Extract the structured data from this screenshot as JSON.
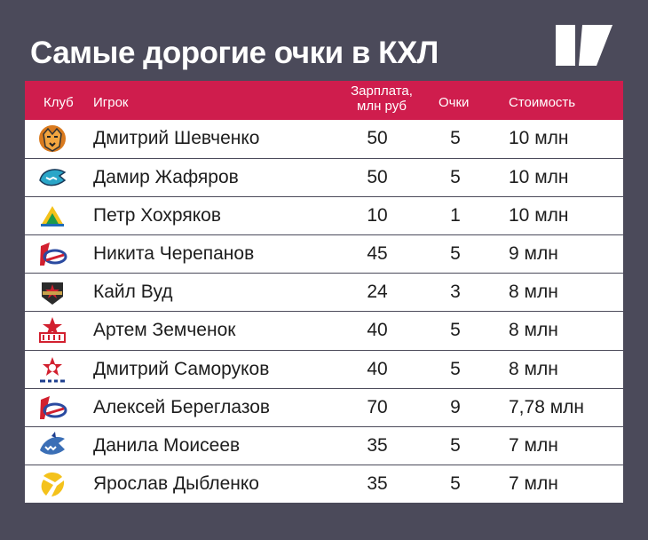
{
  "title": "Самые дорогие очки в КХЛ",
  "colors": {
    "background": "#4b4a5a",
    "header": "#cf1d4d",
    "text": "#1d1d1d"
  },
  "table": {
    "headers": {
      "club": "Клуб",
      "player": "Игрок",
      "salary_line1": "Зарплата,",
      "salary_line2": "млн руб",
      "points": "Очки",
      "cost": "Стоимость"
    },
    "rows": [
      {
        "emblem": "tiger-emblem",
        "player": "Дмитрий Шевченко",
        "salary": "50",
        "points": "5",
        "cost": "10 млн"
      },
      {
        "emblem": "leopard-emblem",
        "player": "Дамир Жафяров",
        "salary": "50",
        "points": "5",
        "cost": "10 млн"
      },
      {
        "emblem": "salavat-emblem",
        "player": "Петр Хохряков",
        "salary": "10",
        "points": "1",
        "cost": "10 млн"
      },
      {
        "emblem": "lokomotiv-emblem",
        "player": "Никита Черепанов",
        "salary": "45",
        "points": "5",
        "cost": "9 млн"
      },
      {
        "emblem": "redstar-emblem",
        "player": "Кайл Вуд",
        "salary": "24",
        "points": "3",
        "cost": "8 млн"
      },
      {
        "emblem": "ska-emblem",
        "player": "Артем Земченок",
        "salary": "40",
        "points": "5",
        "cost": "8 млн"
      },
      {
        "emblem": "cska-emblem",
        "player": "Дмитрий Саморуков",
        "salary": "40",
        "points": "5",
        "cost": "8 млн"
      },
      {
        "emblem": "lokomotiv-emblem",
        "player": "Алексей Береглазов",
        "salary": "70",
        "points": "9",
        "cost": "7,78 млн"
      },
      {
        "emblem": "shark-emblem",
        "player": "Данила Моисеев",
        "salary": "35",
        "points": "5",
        "cost": "7 млн"
      },
      {
        "emblem": "yellow-emblem",
        "player": "Ярослав Дыбленко",
        "salary": "35",
        "points": "5",
        "cost": "7 млн"
      }
    ]
  }
}
